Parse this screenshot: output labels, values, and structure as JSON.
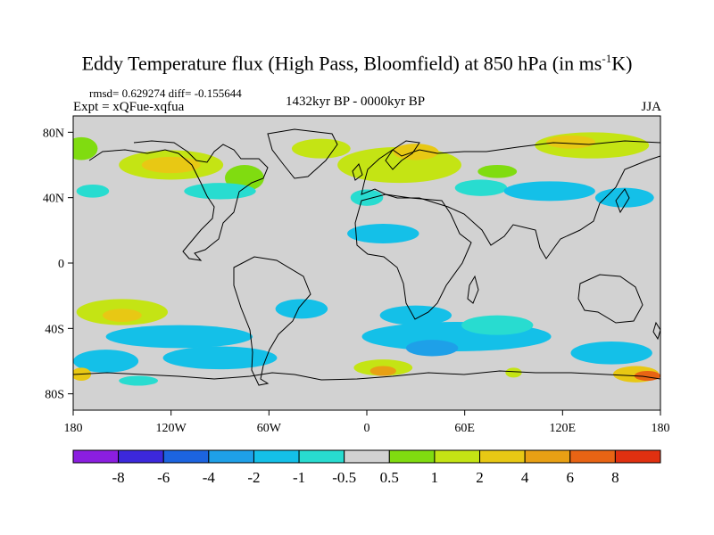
{
  "title": {
    "main": "Eddy Temperature flux (High Pass, Bloomfield) at 850 hPa (in ms",
    "sup": "-1",
    "tail": "K)"
  },
  "stats": {
    "rmsd_diff": "rmsd= 0.629274 diff= -0.155644",
    "experiment": "Expt = xQFue-xqfua",
    "period": "1432kyr BP - 0000kyr BP",
    "season": "JJA"
  },
  "axes": {
    "x_ticks": [
      {
        "value": -180,
        "label": "180"
      },
      {
        "value": -120,
        "label": "120W"
      },
      {
        "value": -60,
        "label": "60W"
      },
      {
        "value": 0,
        "label": "0"
      },
      {
        "value": 60,
        "label": "60E"
      },
      {
        "value": 120,
        "label": "120E"
      },
      {
        "value": 180,
        "label": "180"
      }
    ],
    "y_ticks": [
      {
        "value": 80,
        "label": "80N"
      },
      {
        "value": 40,
        "label": "40N"
      },
      {
        "value": 0,
        "label": "0"
      },
      {
        "value": -40,
        "label": "40S"
      },
      {
        "value": -80,
        "label": "80S"
      }
    ],
    "lon_range": [
      -180,
      180
    ],
    "lat_range": [
      -90,
      90
    ]
  },
  "colorbar": {
    "colors": [
      "#8b1ee0",
      "#3c28dc",
      "#1c64e0",
      "#1ea0e8",
      "#14c0e8",
      "#28dcd0",
      "#d2d2d2",
      "#80dc10",
      "#c4e414",
      "#e8c814",
      "#e8a014",
      "#e86414",
      "#e03010"
    ],
    "labels": [
      "-8",
      "-6",
      "-4",
      "-2",
      "-1",
      "-0.5",
      "0.5",
      "1",
      "2",
      "4",
      "6",
      "8"
    ]
  },
  "map": {
    "background_color": "#d2d2d2",
    "anomalies": [
      {
        "lon": -175,
        "lat": 70,
        "rlon": 10,
        "rlat": 7,
        "level": "0.5"
      },
      {
        "lon": -120,
        "lat": 60,
        "rlon": 32,
        "rlat": 9,
        "level": "1"
      },
      {
        "lon": -120,
        "lat": 60,
        "rlon": 18,
        "rlat": 5,
        "level": "2"
      },
      {
        "lon": -75,
        "lat": 52,
        "rlon": 12,
        "rlat": 8,
        "level": "0.5"
      },
      {
        "lon": -90,
        "lat": 44,
        "rlon": 22,
        "rlat": 5,
        "level": "-0.5"
      },
      {
        "lon": -168,
        "lat": 44,
        "rlon": 10,
        "rlat": 4,
        "level": "-0.5"
      },
      {
        "lon": -28,
        "lat": 70,
        "rlon": 18,
        "rlat": 6,
        "level": "1"
      },
      {
        "lon": 20,
        "lat": 60,
        "rlon": 38,
        "rlat": 11,
        "level": "1"
      },
      {
        "lon": 30,
        "lat": 68,
        "rlon": 14,
        "rlat": 5,
        "level": "2"
      },
      {
        "lon": 0,
        "lat": 40,
        "rlon": 10,
        "rlat": 5,
        "level": "-0.5"
      },
      {
        "lon": 10,
        "lat": 18,
        "rlon": 22,
        "rlat": 6,
        "level": "-1"
      },
      {
        "lon": 70,
        "lat": 46,
        "rlon": 16,
        "rlat": 5,
        "level": "-0.5"
      },
      {
        "lon": 80,
        "lat": 56,
        "rlon": 12,
        "rlat": 4,
        "level": "0.5"
      },
      {
        "lon": 138,
        "lat": 72,
        "rlon": 35,
        "rlat": 8,
        "level": "1"
      },
      {
        "lon": 125,
        "lat": 74,
        "rlon": 15,
        "rlat": 4,
        "level": "2"
      },
      {
        "lon": 112,
        "lat": 44,
        "rlon": 28,
        "rlat": 6,
        "level": "-1"
      },
      {
        "lon": 158,
        "lat": 40,
        "rlon": 18,
        "rlat": 6,
        "level": "-1"
      },
      {
        "lon": -150,
        "lat": -30,
        "rlon": 28,
        "rlat": 8,
        "level": "1"
      },
      {
        "lon": -150,
        "lat": -32,
        "rlon": 12,
        "rlat": 4,
        "level": "2"
      },
      {
        "lon": -115,
        "lat": -45,
        "rlon": 45,
        "rlat": 7,
        "level": "-1"
      },
      {
        "lon": -40,
        "lat": -28,
        "rlon": 16,
        "rlat": 6,
        "level": "-1"
      },
      {
        "lon": 30,
        "lat": -32,
        "rlon": 22,
        "rlat": 6,
        "level": "-1"
      },
      {
        "lon": 55,
        "lat": -45,
        "rlon": 58,
        "rlat": 9,
        "level": "-1"
      },
      {
        "lon": 40,
        "lat": -52,
        "rlon": 16,
        "rlat": 5,
        "level": "-2"
      },
      {
        "lon": 80,
        "lat": -38,
        "rlon": 22,
        "rlat": 6,
        "level": "-0.5"
      },
      {
        "lon": 150,
        "lat": -55,
        "rlon": 25,
        "rlat": 7,
        "level": "-1"
      },
      {
        "lon": -160,
        "lat": -60,
        "rlon": 20,
        "rlat": 7,
        "level": "-1"
      },
      {
        "lon": -90,
        "lat": -58,
        "rlon": 35,
        "rlat": 7,
        "level": "-1"
      },
      {
        "lon": 10,
        "lat": -64,
        "rlon": 18,
        "rlat": 5,
        "level": "1"
      },
      {
        "lon": 10,
        "lat": -66,
        "rlon": 8,
        "rlat": 3,
        "level": "4"
      },
      {
        "lon": -175,
        "lat": -68,
        "rlon": 6,
        "rlat": 4,
        "level": "2"
      },
      {
        "lon": 165,
        "lat": -68,
        "rlon": 14,
        "rlat": 5,
        "level": "2"
      },
      {
        "lon": 172,
        "lat": -69,
        "rlon": 8,
        "rlat": 3,
        "level": "6"
      },
      {
        "lon": 90,
        "lat": -67,
        "rlon": 5,
        "rlat": 3,
        "level": "1"
      },
      {
        "lon": -140,
        "lat": -72,
        "rlon": 12,
        "rlat": 3,
        "level": "-0.5"
      }
    ]
  }
}
